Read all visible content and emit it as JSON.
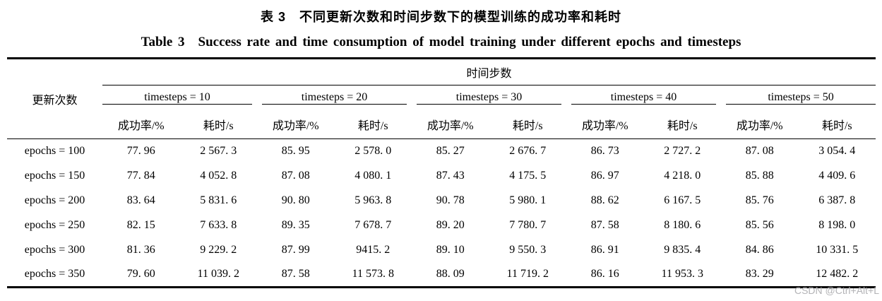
{
  "title_zh": "表 3　不同更新次数和时间步数下的模型训练的成功率和耗时",
  "title_en": "Table 3　Success rate and time consumption of model training under different epochs and timesteps",
  "table": {
    "row_header": "更新次数",
    "col_group_header": "时间步数",
    "groups": [
      {
        "label": "timesteps = 10"
      },
      {
        "label": "timesteps = 20"
      },
      {
        "label": "timesteps = 30"
      },
      {
        "label": "timesteps = 40"
      },
      {
        "label": "timesteps = 50"
      }
    ],
    "sub_headers": {
      "success": "成功率/%",
      "time": "耗时/s"
    },
    "rows": [
      {
        "label": "epochs = 100",
        "values": [
          "77. 96",
          "2 567. 3",
          "85. 95",
          "2 578. 0",
          "85. 27",
          "2 676. 7",
          "86. 73",
          "2 727. 2",
          "87. 08",
          "3 054. 4"
        ]
      },
      {
        "label": "epochs = 150",
        "values": [
          "77. 84",
          "4 052. 8",
          "87. 08",
          "4 080. 1",
          "87. 43",
          "4 175. 5",
          "86. 97",
          "4 218. 0",
          "85. 88",
          "4 409. 6"
        ]
      },
      {
        "label": "epochs = 200",
        "values": [
          "83. 64",
          "5 831. 6",
          "90. 80",
          "5 963. 8",
          "90. 78",
          "5 980. 1",
          "88. 62",
          "6 167. 5",
          "85. 76",
          "6 387. 8"
        ]
      },
      {
        "label": "epochs = 250",
        "values": [
          "82. 15",
          "7 633. 8",
          "89. 35",
          "7 678. 7",
          "89. 20",
          "7 780. 7",
          "87. 58",
          "8 180. 6",
          "85. 56",
          "8 198. 0"
        ]
      },
      {
        "label": "epochs = 300",
        "values": [
          "81. 36",
          "9 229. 2",
          "87. 99",
          "9415. 2",
          "89. 10",
          "9 550. 3",
          "86. 91",
          "9 835. 4",
          "84. 86",
          "10 331. 5"
        ]
      },
      {
        "label": "epochs = 350",
        "values": [
          "79. 60",
          "11 039. 2",
          "87. 58",
          "11 573. 8",
          "88. 09",
          "11 719. 2",
          "86. 16",
          "11 953. 3",
          "83. 29",
          "12 482. 2"
        ]
      }
    ]
  },
  "watermark": "CSDN @Ctrl+Alt+L",
  "colors": {
    "text": "#000000",
    "rule": "#000000",
    "watermark": "#b3b3b6",
    "background": "#ffffff"
  }
}
